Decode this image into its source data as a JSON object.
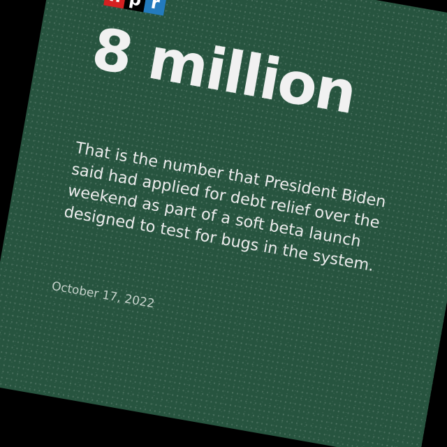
{
  "logo": {
    "letters": [
      {
        "char": "n",
        "color": "#d62021"
      },
      {
        "char": "p",
        "color": "#000000"
      },
      {
        "char": "r",
        "color": "#237bbd"
      }
    ]
  },
  "card": {
    "headline": "8 million",
    "body": "That is the number that President Biden said had applied for debt relief over the weekend as part of a soft beta launch designed to test for bugs in the system.",
    "date": "October 17, 2022"
  },
  "colors": {
    "card_background": "#27543f",
    "outer_background": "#000000",
    "text": "#f1f1f1"
  }
}
